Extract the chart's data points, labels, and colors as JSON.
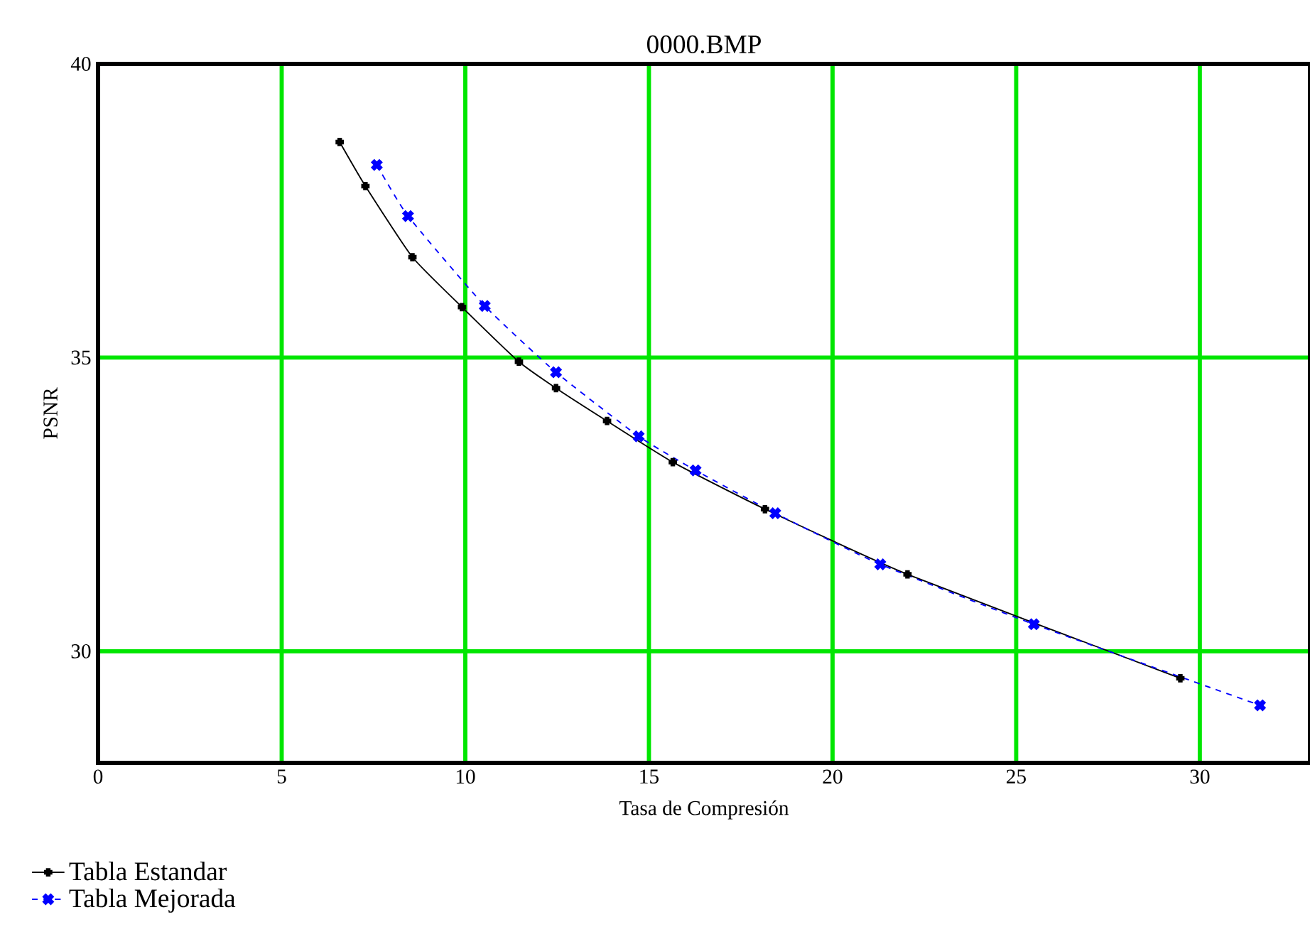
{
  "chart_data": {
    "type": "line",
    "title": "0000.BMP",
    "xlabel": "Tasa de Compresión",
    "ylabel": "PSNR",
    "xlim": [
      0,
      33
    ],
    "ylim": [
      28.1,
      40
    ],
    "xticks": [
      0,
      5,
      10,
      15,
      20,
      25,
      30
    ],
    "yticks": [
      30,
      35,
      40
    ],
    "grid": true,
    "legend": "bottom left",
    "series": [
      {
        "name": "Tabla Estandar",
        "color": "#000000",
        "marker": "plus",
        "line_style": "solid",
        "x": [
          6.58,
          7.28,
          8.56,
          9.91,
          11.46,
          12.47,
          13.86,
          15.65,
          18.16,
          22.04,
          29.47
        ],
        "values": [
          38.67,
          37.92,
          36.71,
          35.86,
          34.93,
          34.48,
          33.92,
          33.22,
          32.42,
          31.31,
          29.54
        ]
      },
      {
        "name": "Tabla Mejorada",
        "color": "#0000ff",
        "marker": "cross",
        "line_style": "dashed",
        "x": [
          7.59,
          8.44,
          10.53,
          12.47,
          14.72,
          16.27,
          18.44,
          21.3,
          25.48,
          31.64
        ],
        "values": [
          38.28,
          37.41,
          35.88,
          34.75,
          33.66,
          33.08,
          32.35,
          31.48,
          30.46,
          29.08
        ]
      }
    ]
  }
}
